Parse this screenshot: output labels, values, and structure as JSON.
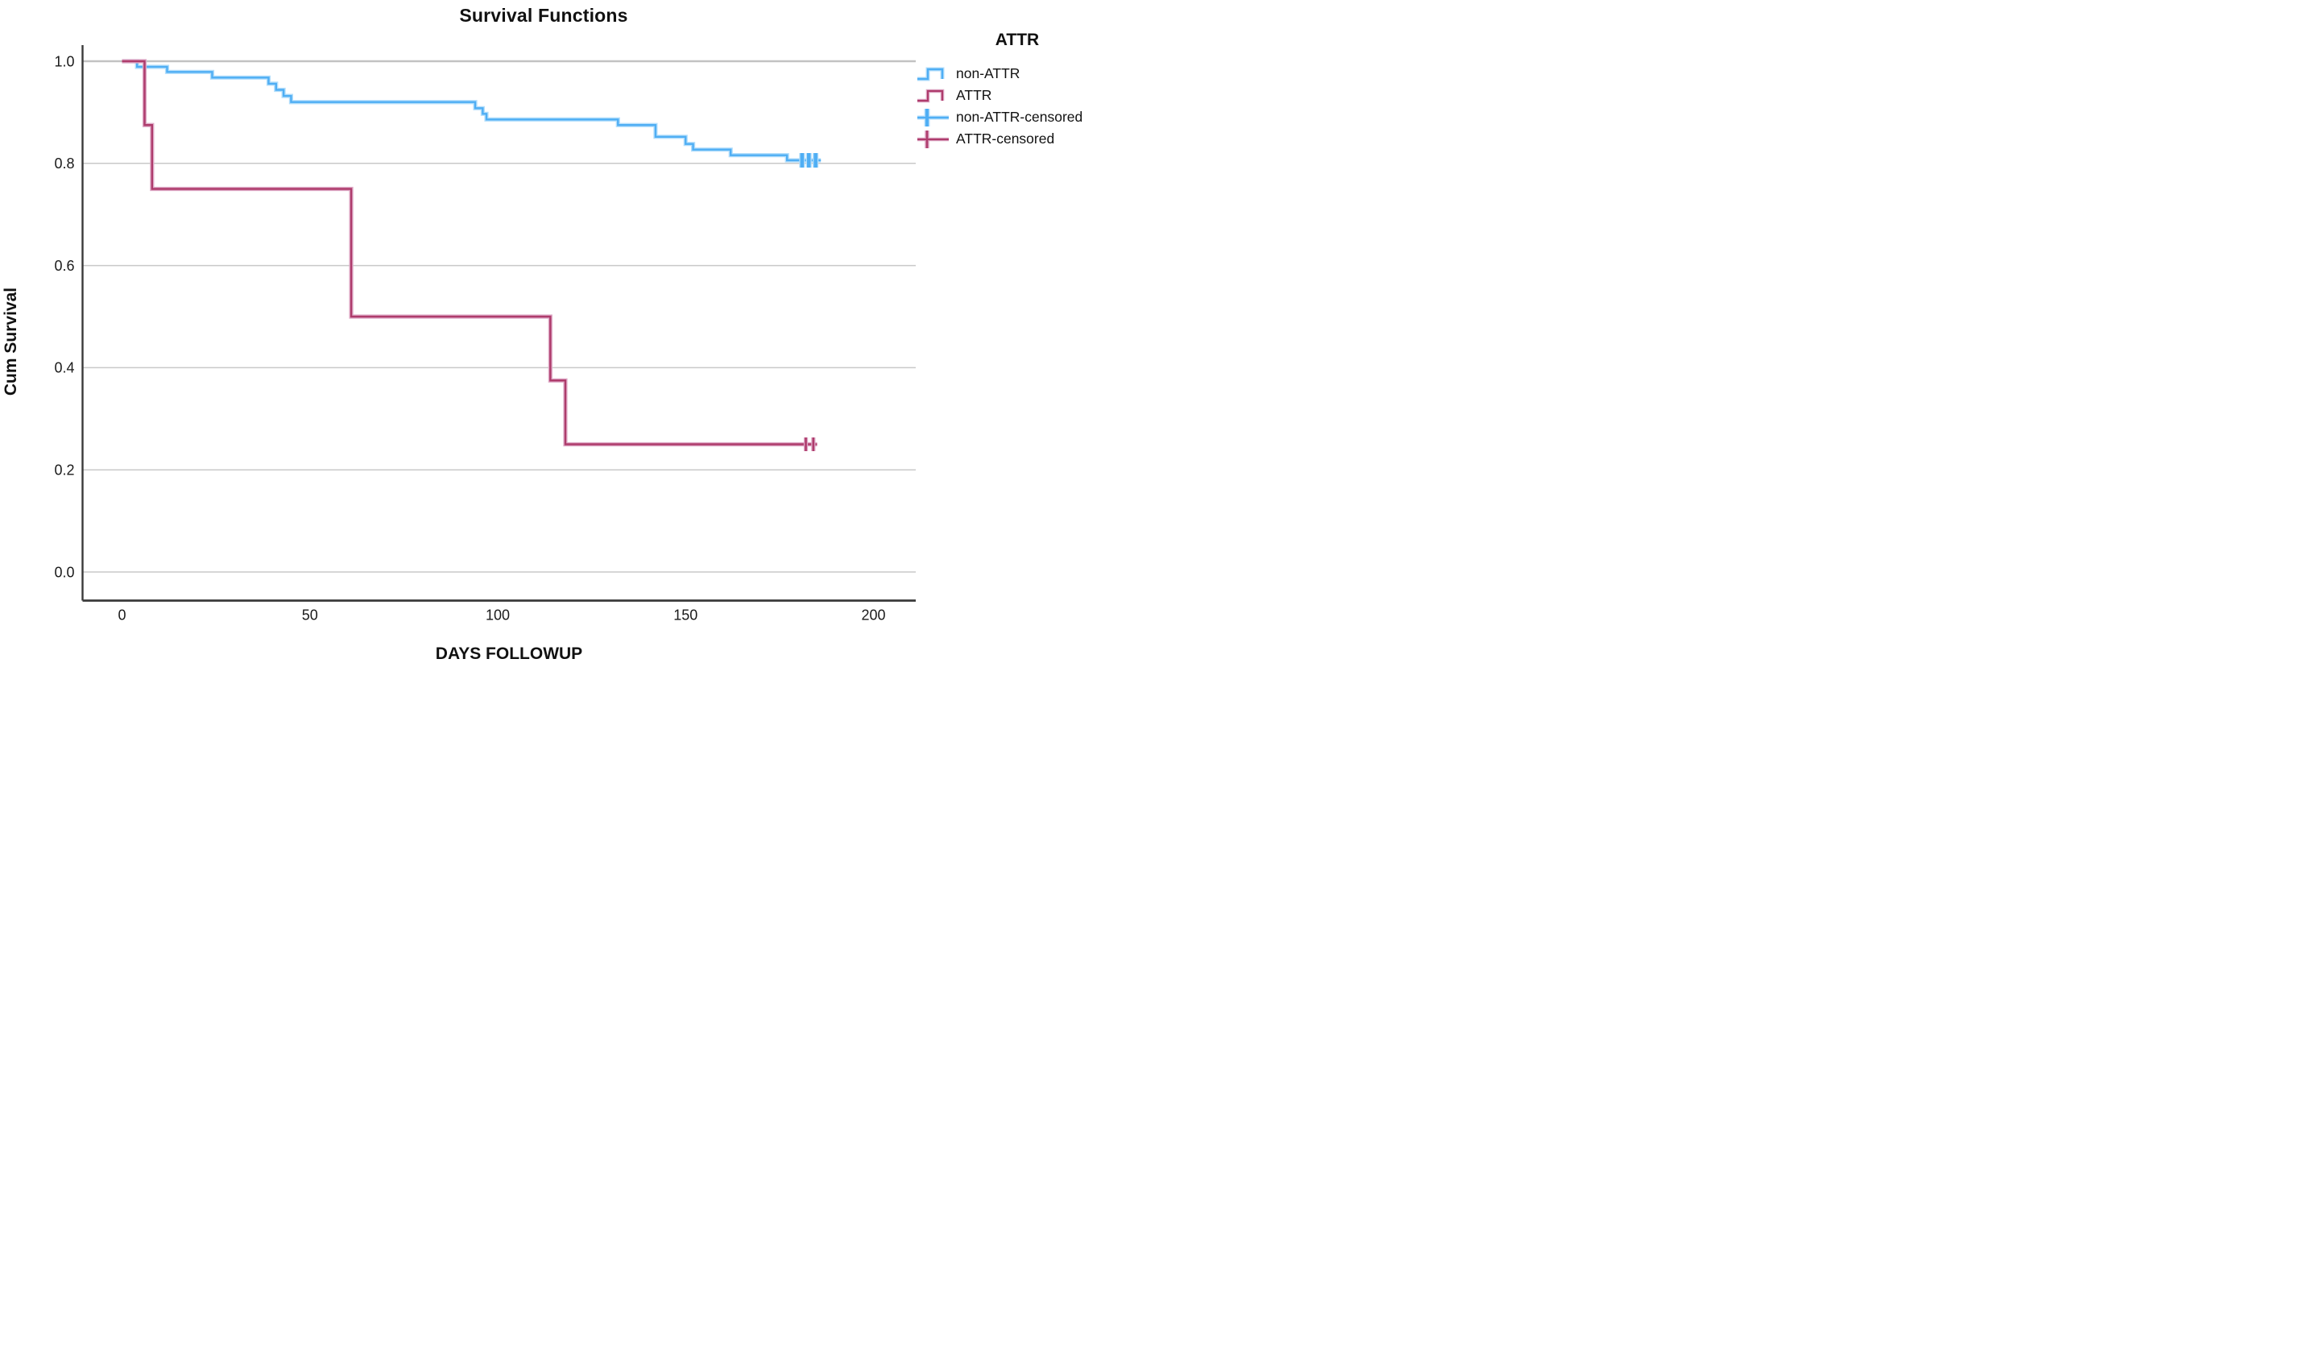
{
  "figure": {
    "title": "Survival Functions"
  },
  "axes": {
    "x_title": "DAYS FOLLOWUP",
    "y_title": "Cum Survival"
  },
  "legend": {
    "title": "ATTR",
    "entries": [
      {
        "label": "non-ATTR",
        "swatch": "step-line",
        "series": "non-ATTR"
      },
      {
        "label": "ATTR",
        "swatch": "step-line",
        "series": "ATTR"
      },
      {
        "label": "non-ATTR-censored",
        "swatch": "censored-mark",
        "series": "non-ATTR"
      },
      {
        "label": "ATTR-censored",
        "swatch": "censored-mark",
        "series": "ATTR"
      }
    ]
  },
  "colors": {
    "non_attr_core": "#4FAEF4",
    "non_attr_halo": "#B3DEFB",
    "attr_core": "#AE3C6C",
    "attr_halo": "#DEA9C6",
    "grid": "#C9C9C9",
    "grid_top": "#C2C2C2",
    "axis": "#3A3A3A",
    "tick_text": "#1A1A1A"
  },
  "chart_data": {
    "type": "line",
    "subtype": "kaplan-meier-step",
    "title": "Survival Functions",
    "xlabel": "DAYS FOLLOWUP",
    "ylabel": "Cum Survival",
    "xticks": [
      0,
      50,
      100,
      150,
      200
    ],
    "yticks": [
      0.0,
      0.2,
      0.4,
      0.6,
      0.8,
      1.0
    ],
    "xlim": [
      -10.5,
      211
    ],
    "ylim": [
      -0.056,
      1.06
    ],
    "grid": "horizontal",
    "legend_position": "right",
    "series": [
      {
        "name": "non-ATTR",
        "color_key": "non_attr",
        "steps": [
          [
            0,
            1.0
          ],
          [
            4,
            0.989
          ],
          [
            12,
            0.979
          ],
          [
            24,
            0.968
          ],
          [
            39,
            0.956
          ],
          [
            41,
            0.944
          ],
          [
            43,
            0.932
          ],
          [
            45,
            0.92
          ],
          [
            94,
            0.908
          ],
          [
            96,
            0.897
          ],
          [
            97,
            0.886
          ],
          [
            132,
            0.875
          ],
          [
            142,
            0.852
          ],
          [
            150,
            0.838
          ],
          [
            152,
            0.827
          ],
          [
            162,
            0.816
          ],
          [
            177,
            0.806
          ]
        ],
        "end_x": 186,
        "censored": [
          [
            181,
            0.806
          ],
          [
            182.8,
            0.806
          ],
          [
            184.6,
            0.806
          ]
        ],
        "censor_style": {
          "half_height": 9,
          "stroke_width": 4.5
        }
      },
      {
        "name": "ATTR",
        "color_key": "attr",
        "steps": [
          [
            0,
            1.0
          ],
          [
            6,
            0.875
          ],
          [
            8,
            0.75
          ],
          [
            61,
            0.5
          ],
          [
            114,
            0.375
          ],
          [
            118,
            0.25
          ]
        ],
        "end_x": 185,
        "censored": [
          [
            182,
            0.25
          ],
          [
            184,
            0.25
          ]
        ],
        "censor_style": {
          "half_height": 8.5,
          "stroke_width": 2.6
        }
      }
    ]
  }
}
